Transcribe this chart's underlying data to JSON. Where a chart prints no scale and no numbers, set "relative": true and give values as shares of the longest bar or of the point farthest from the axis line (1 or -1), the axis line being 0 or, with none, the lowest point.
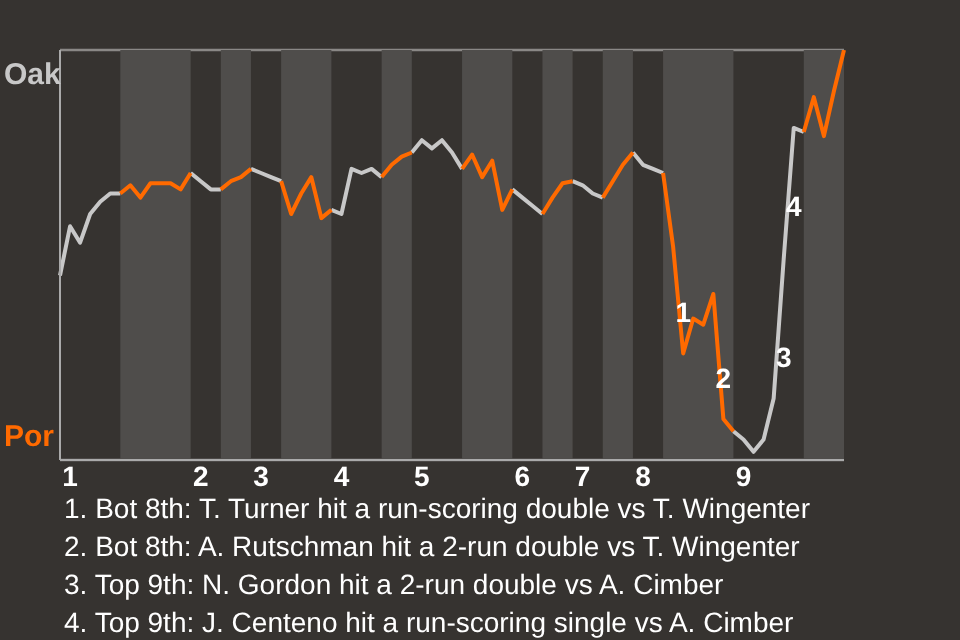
{
  "chart_data": {
    "type": "line",
    "relative": true,
    "categories": [
      null,
      "1",
      null,
      null,
      null,
      null,
      null,
      null,
      null,
      null,
      null,
      null,
      null,
      null,
      "2",
      null,
      null,
      null,
      null,
      null,
      "3",
      null,
      null,
      null,
      null,
      null,
      null,
      null,
      "4",
      null,
      null,
      null,
      null,
      null,
      null,
      null,
      "5",
      null,
      null,
      null,
      null,
      null,
      null,
      null,
      null,
      null,
      "6",
      null,
      null,
      null,
      null,
      null,
      "7",
      null,
      null,
      null,
      null,
      null,
      "8",
      null,
      null,
      null,
      null,
      null,
      null,
      null,
      null,
      null,
      "9",
      null,
      null,
      null,
      null,
      null,
      null,
      null,
      null,
      null,
      null
    ],
    "grid": "y",
    "legend": "left",
    "marker": "none",
    "line_style": "solid",
    "series": [
      {
        "name": "Oak",
        "color": "#c8c8c8",
        "values": [
          0.45,
          0.57,
          0.53,
          0.6,
          0.63,
          0.65,
          0.65,
          null,
          null,
          null,
          null,
          null,
          null,
          0.7,
          0.68,
          0.66,
          0.66,
          null,
          null,
          0.71,
          0.7,
          0.69,
          0.68,
          null,
          null,
          null,
          null,
          0.61,
          0.6,
          0.71,
          0.7,
          0.71,
          0.69,
          null,
          null,
          0.75,
          0.78,
          0.76,
          0.78,
          0.75,
          0.71,
          null,
          null,
          null,
          null,
          0.66,
          0.64,
          0.62,
          0.6,
          null,
          null,
          0.68,
          0.67,
          0.65,
          0.64,
          null,
          null,
          0.75,
          0.72,
          0.71,
          0.7,
          null,
          null,
          null,
          null,
          null,
          null,
          0.07,
          0.05,
          0.02,
          0.05,
          0.15,
          0.49,
          0.81,
          0.8,
          null,
          null,
          null,
          null
        ]
      },
      {
        "name": "Por",
        "color": "#ff6a00",
        "values": [
          null,
          null,
          null,
          null,
          null,
          null,
          0.65,
          0.67,
          0.64,
          0.675,
          0.675,
          0.675,
          0.66,
          0.7,
          null,
          null,
          0.66,
          0.68,
          0.69,
          0.71,
          null,
          null,
          0.68,
          0.6,
          0.65,
          0.69,
          0.59,
          0.61,
          null,
          null,
          null,
          null,
          0.69,
          0.72,
          0.74,
          0.75,
          null,
          null,
          null,
          null,
          0.71,
          0.745,
          0.69,
          0.73,
          0.61,
          0.66,
          null,
          null,
          0.6,
          0.64,
          0.675,
          0.68,
          null,
          null,
          0.64,
          0.68,
          0.72,
          0.75,
          null,
          null,
          0.7,
          0.52,
          0.26,
          0.345,
          0.33,
          0.405,
          0.1,
          0.07,
          null,
          null,
          null,
          null,
          null,
          null,
          0.8,
          0.885,
          0.79,
          0.9,
          1
        ]
      }
    ],
    "annotations": [
      {
        "text": "1",
        "y": 0.36
      },
      {
        "text": "2",
        "y": 0.2
      },
      {
        "text": "3",
        "y": 0.25
      },
      {
        "text": "4",
        "y": 0.62
      },
      "1. Bot 8th: T. Turner hit a run-scoring double vs T. Wingenter",
      "2. Bot 8th: A. Rutschman hit a 2-run double vs T. Wingenter",
      "3. Top 9th: N. Gordon hit a 2-run double vs A. Cimber",
      "4. Top 9th: J. Centeno hit a run-scoring single vs A. Cimber"
    ]
  }
}
